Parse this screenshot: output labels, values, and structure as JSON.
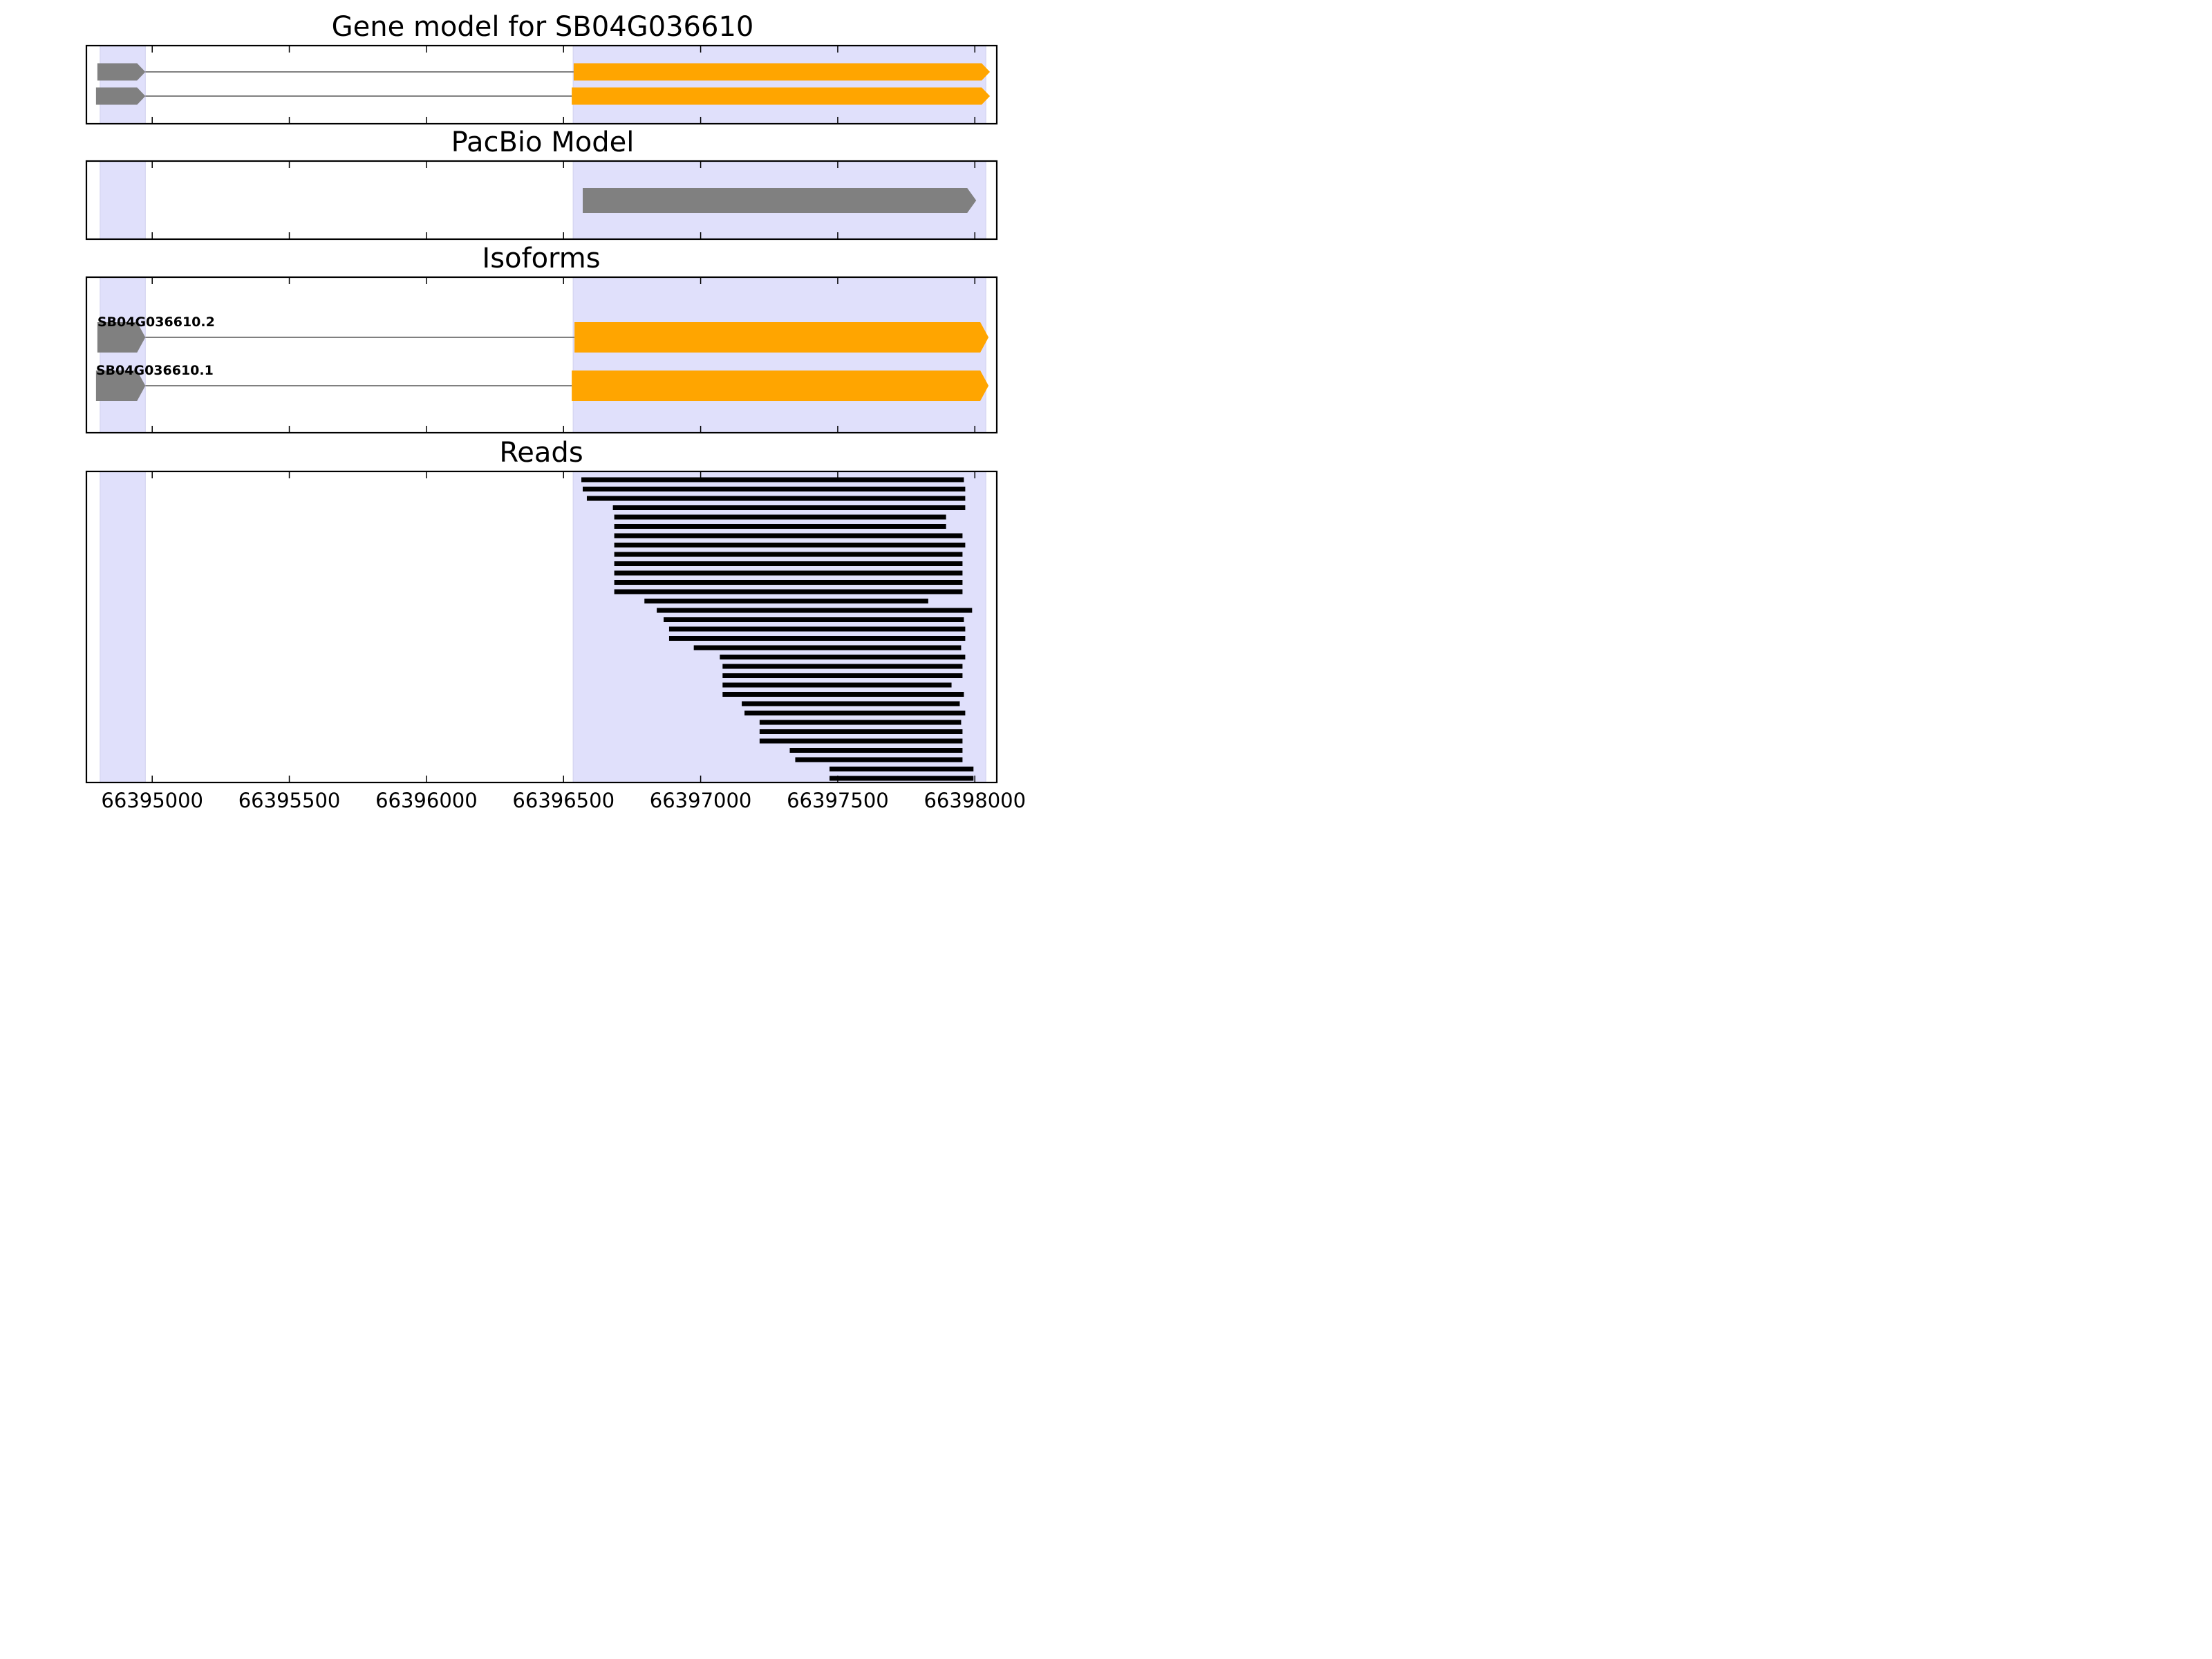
{
  "colors": {
    "utr": "#808080",
    "cds": "#ffa500",
    "intron": "#808080",
    "exon_region": "#e0e0fb",
    "read": "#000000"
  },
  "chart_data": [
    {
      "type": "gene_model",
      "title": "Gene model for SB04G036610",
      "xlim": [
        66394760,
        66398080
      ],
      "exon_regions": [
        [
          66394810,
          66394975
        ],
        [
          66396535,
          66398040
        ]
      ],
      "transcripts": [
        {
          "segments": [
            {
              "start": 66394800,
              "end": 66394975,
              "kind": "utr"
            },
            {
              "start": 66396537,
              "end": 66398055,
              "kind": "cds"
            }
          ]
        },
        {
          "segments": [
            {
              "start": 66394795,
              "end": 66394975,
              "kind": "utr"
            },
            {
              "start": 66396530,
              "end": 66398055,
              "kind": "cds"
            }
          ]
        }
      ]
    },
    {
      "type": "gene_model",
      "title": "PacBio Model",
      "xlim": [
        66394760,
        66398080
      ],
      "exon_regions": [
        [
          66394810,
          66394975
        ],
        [
          66396535,
          66398040
        ]
      ],
      "transcripts": [
        {
          "segments": [
            {
              "start": 66396570,
              "end": 66398005,
              "kind": "utr"
            }
          ]
        }
      ]
    },
    {
      "type": "gene_model",
      "title": "Isoforms",
      "xlim": [
        66394760,
        66398080
      ],
      "exon_regions": [
        [
          66394810,
          66394975
        ],
        [
          66396535,
          66398040
        ]
      ],
      "transcripts": [
        {
          "name": "SB04G036610.2",
          "segments": [
            {
              "start": 66394800,
              "end": 66394975,
              "kind": "utr"
            },
            {
              "start": 66396540,
              "end": 66398050,
              "kind": "cds"
            }
          ]
        },
        {
          "name": "SB04G036610.1",
          "segments": [
            {
              "start": 66394795,
              "end": 66394975,
              "kind": "utr"
            },
            {
              "start": 66396530,
              "end": 66398050,
              "kind": "cds"
            }
          ]
        }
      ]
    },
    {
      "type": "reads",
      "title": "Reads",
      "xlim": [
        66394760,
        66398080
      ],
      "x_ticks": [
        "66395000",
        "66395500",
        "66396000",
        "66396500",
        "66397000",
        "66397500",
        "66398000"
      ],
      "x_tick_values": [
        66395000,
        66395500,
        66396000,
        66396500,
        66397000,
        66397500,
        66398000
      ],
      "exon_regions": [
        [
          66394810,
          66394975
        ],
        [
          66396535,
          66398040
        ]
      ],
      "reads": [
        [
          66396565,
          66397960
        ],
        [
          66396570,
          66397965
        ],
        [
          66396585,
          66397965
        ],
        [
          66396680,
          66397965
        ],
        [
          66396685,
          66397895
        ],
        [
          66396685,
          66397895
        ],
        [
          66396685,
          66397955
        ],
        [
          66396685,
          66397965
        ],
        [
          66396685,
          66397955
        ],
        [
          66396685,
          66397955
        ],
        [
          66396685,
          66397955
        ],
        [
          66396685,
          66397955
        ],
        [
          66396685,
          66397955
        ],
        [
          66396795,
          66397830
        ],
        [
          66396840,
          66397990
        ],
        [
          66396865,
          66397960
        ],
        [
          66396885,
          66397965
        ],
        [
          66396885,
          66397965
        ],
        [
          66396975,
          66397950
        ],
        [
          66397070,
          66397965
        ],
        [
          66397080,
          66397955
        ],
        [
          66397080,
          66397955
        ],
        [
          66397080,
          66397915
        ],
        [
          66397080,
          66397960
        ],
        [
          66397150,
          66397945
        ],
        [
          66397160,
          66397965
        ],
        [
          66397215,
          66397950
        ],
        [
          66397215,
          66397955
        ],
        [
          66397215,
          66397955
        ],
        [
          66397325,
          66397955
        ],
        [
          66397345,
          66397955
        ],
        [
          66397470,
          66397995
        ],
        [
          66397470,
          66397995
        ]
      ]
    }
  ]
}
